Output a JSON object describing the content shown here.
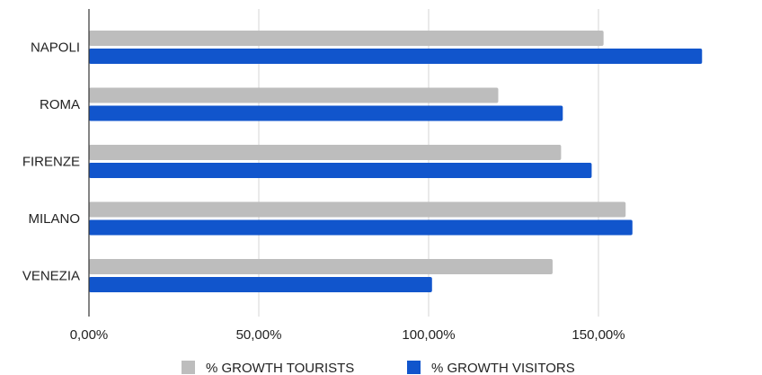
{
  "chart_data": {
    "type": "bar",
    "orientation": "horizontal",
    "categories": [
      "NAPOLI",
      "ROMA",
      "FIRENZE",
      "MILANO",
      "VENEZIA"
    ],
    "series": [
      {
        "name": "% GROWTH TOURISTS",
        "color": "#bdbdbd",
        "values": [
          151.5,
          120.5,
          139.0,
          158.0,
          136.5
        ]
      },
      {
        "name": "% GROWTH VISITORS",
        "color": "#1155cc",
        "values": [
          180.5,
          139.5,
          148.0,
          160.0,
          101.0
        ]
      }
    ],
    "x_ticks": [
      "0,00%",
      "50,00%",
      "100,00%",
      "150,00%"
    ],
    "xlim": [
      0,
      200
    ],
    "grid": true,
    "legend_position": "bottom"
  }
}
